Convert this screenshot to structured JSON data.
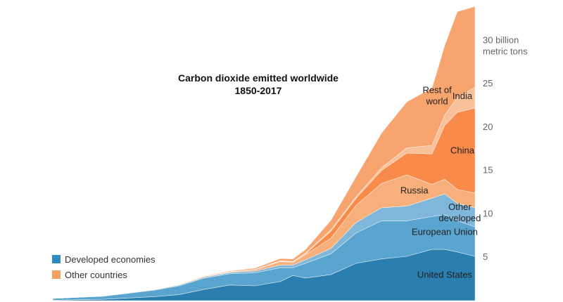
{
  "chart_data": {
    "type": "area",
    "title": "Carbon dioxide emitted worldwide",
    "subtitle": "1850-2017",
    "xlim": [
      1850,
      2017
    ],
    "ylim": [
      0,
      34
    ],
    "y_ticks": [
      {
        "value": 5,
        "label": "5"
      },
      {
        "value": 10,
        "label": "10"
      },
      {
        "value": 15,
        "label": "15"
      },
      {
        "value": 20,
        "label": "20"
      },
      {
        "value": 25,
        "label": "25"
      },
      {
        "value": 30,
        "label": "30 billion"
      }
    ],
    "y_unit_label": "metric tons",
    "stacked": true,
    "x": [
      1850,
      1870,
      1890,
      1900,
      1910,
      1920,
      1930,
      1940,
      1945,
      1950,
      1960,
      1970,
      1980,
      1990,
      2000,
      2005,
      2010,
      2017
    ],
    "legend": [
      {
        "label": "Developed economies",
        "color": "#2f8cbf"
      },
      {
        "label": "Other countries",
        "color": "#f5a062"
      }
    ],
    "series": [
      {
        "name": "United States",
        "group": "Developed economies",
        "color": "#2a7eb0",
        "values": [
          0.05,
          0.15,
          0.45,
          0.7,
          1.3,
          1.8,
          1.7,
          2.2,
          2.9,
          2.6,
          3.0,
          4.3,
          4.8,
          5.1,
          5.9,
          5.9,
          5.6,
          5.1
        ]
      },
      {
        "name": "European Union",
        "group": "Developed economies",
        "color": "#5aa5d0",
        "values": [
          0.2,
          0.35,
          0.75,
          1.0,
          1.3,
          1.3,
          1.5,
          1.6,
          0.9,
          1.7,
          2.4,
          3.5,
          4.4,
          4.1,
          3.8,
          4.0,
          3.6,
          3.4
        ]
      },
      {
        "name": "Other developed",
        "group": "Developed economies",
        "color": "#7fb7da",
        "values": [
          0.0,
          0.02,
          0.05,
          0.08,
          0.1,
          0.15,
          0.2,
          0.3,
          0.3,
          0.4,
          0.6,
          1.2,
          1.5,
          1.7,
          2.1,
          2.4,
          2.0,
          2.2
        ]
      },
      {
        "name": "Russia",
        "group": "Other countries",
        "color": "#f7b07c",
        "values": [
          0.0,
          0.01,
          0.02,
          0.05,
          0.1,
          0.05,
          0.15,
          0.4,
          0.3,
          0.6,
          1.2,
          2.0,
          2.8,
          3.6,
          1.6,
          1.7,
          1.6,
          1.7
        ]
      },
      {
        "name": "China",
        "group": "Other countries",
        "color": "#f88b4a",
        "values": [
          0.0,
          0.0,
          0.0,
          0.0,
          0.0,
          0.01,
          0.02,
          0.05,
          0.05,
          0.1,
          0.8,
          0.8,
          1.5,
          2.5,
          3.5,
          6.2,
          8.9,
          9.8
        ]
      },
      {
        "name": "India",
        "group": "Other countries",
        "color": "#f9c19a",
        "values": [
          0.0,
          0.0,
          0.0,
          0.0,
          0.0,
          0.02,
          0.03,
          0.05,
          0.05,
          0.1,
          0.15,
          0.2,
          0.3,
          0.6,
          1.0,
          1.2,
          1.7,
          2.4
        ]
      },
      {
        "name": "Rest of world",
        "group": "Other countries",
        "color": "#f7a46e",
        "values": [
          0.0,
          0.0,
          0.01,
          0.03,
          0.05,
          0.08,
          0.15,
          0.25,
          0.3,
          0.4,
          1.1,
          2.3,
          4.0,
          5.3,
          6.6,
          8.0,
          9.9,
          9.3
        ]
      }
    ]
  }
}
